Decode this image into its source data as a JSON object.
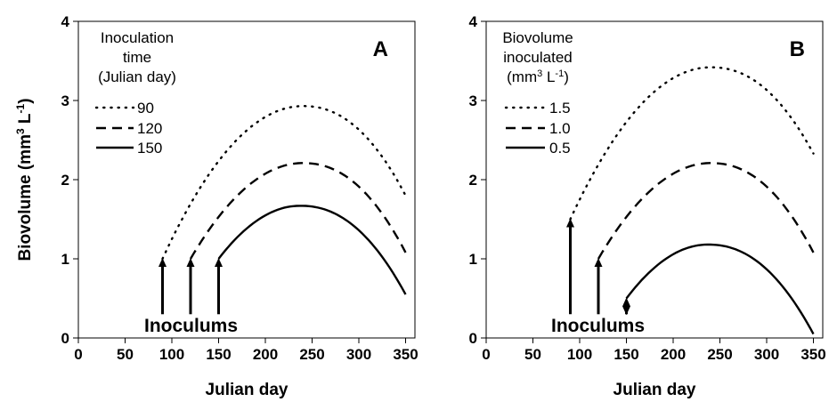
{
  "chart_data": [
    {
      "type": "line",
      "panel_label": "A",
      "xlabel": "Julian day",
      "ylabel": "Biovolume (mm3 L-1)",
      "ylabel_parts": {
        "main": "Biovolume (mm",
        "sup1": "3",
        "mid": " L",
        "sup2": "-1",
        "end": ")"
      },
      "xlim": [
        0,
        360
      ],
      "ylim": [
        0,
        4
      ],
      "x_ticks": [
        0,
        50,
        100,
        150,
        200,
        250,
        300,
        350
      ],
      "y_ticks": [
        0,
        1,
        2,
        3,
        4
      ],
      "grid": false,
      "legend": {
        "title_lines": [
          "Inoculation",
          "time",
          "(Julian day)"
        ],
        "placement": "top-left"
      },
      "series": [
        {
          "name": "90",
          "style": "dotted",
          "start_x": 90,
          "start_y": 1.0,
          "peak_x": 240,
          "peak_y": 2.93,
          "end_x": 350,
          "end_y": 1.8
        },
        {
          "name": "120",
          "style": "dashed",
          "start_x": 120,
          "start_y": 1.0,
          "peak_x": 240,
          "peak_y": 2.21,
          "end_x": 350,
          "end_y": 1.08
        },
        {
          "name": "150",
          "style": "solid",
          "start_x": 150,
          "start_y": 1.0,
          "peak_x": 237,
          "peak_y": 1.67,
          "end_x": 350,
          "end_y": 0.55
        }
      ],
      "arrows": [
        {
          "x": 90,
          "from": 0.3,
          "to": 1.0,
          "direction": "up"
        },
        {
          "x": 120,
          "from": 0.3,
          "to": 1.0,
          "direction": "up"
        },
        {
          "x": 150,
          "from": 0.3,
          "to": 1.0,
          "direction": "up"
        }
      ],
      "annotation": "Inoculums"
    },
    {
      "type": "line",
      "panel_label": "B",
      "xlabel": "Julian day",
      "ylabel": "",
      "xlim": [
        0,
        360
      ],
      "ylim": [
        0,
        4
      ],
      "x_ticks": [
        0,
        50,
        100,
        150,
        200,
        250,
        300,
        350
      ],
      "y_ticks": [
        0,
        1,
        2,
        3,
        4
      ],
      "grid": false,
      "legend": {
        "title_lines": [
          "Biovolume",
          "inoculated"
        ],
        "title_unit": {
          "main": "(mm",
          "sup1": "3",
          "mid": " L",
          "sup2": "-1",
          "end": ")"
        },
        "placement": "top-left"
      },
      "series": [
        {
          "name": "1.5",
          "style": "dotted",
          "start_x": 90,
          "start_y": 1.5,
          "peak_x": 240,
          "peak_y": 3.42,
          "end_x": 350,
          "end_y": 2.33
        },
        {
          "name": "1.0",
          "style": "dashed",
          "start_x": 120,
          "start_y": 1.0,
          "peak_x": 240,
          "peak_y": 2.21,
          "end_x": 350,
          "end_y": 1.08
        },
        {
          "name": "0.5",
          "style": "solid",
          "start_x": 150,
          "start_y": 0.5,
          "peak_x": 237,
          "peak_y": 1.18,
          "end_x": 350,
          "end_y": 0.05
        }
      ],
      "arrows": [
        {
          "x": 90,
          "from": 0.3,
          "to": 1.5,
          "direction": "up"
        },
        {
          "x": 120,
          "from": 0.3,
          "to": 1.0,
          "direction": "up"
        },
        {
          "x": 150,
          "from": 0.3,
          "to": 0.5,
          "direction": "double"
        }
      ],
      "annotation": "Inoculums"
    }
  ]
}
